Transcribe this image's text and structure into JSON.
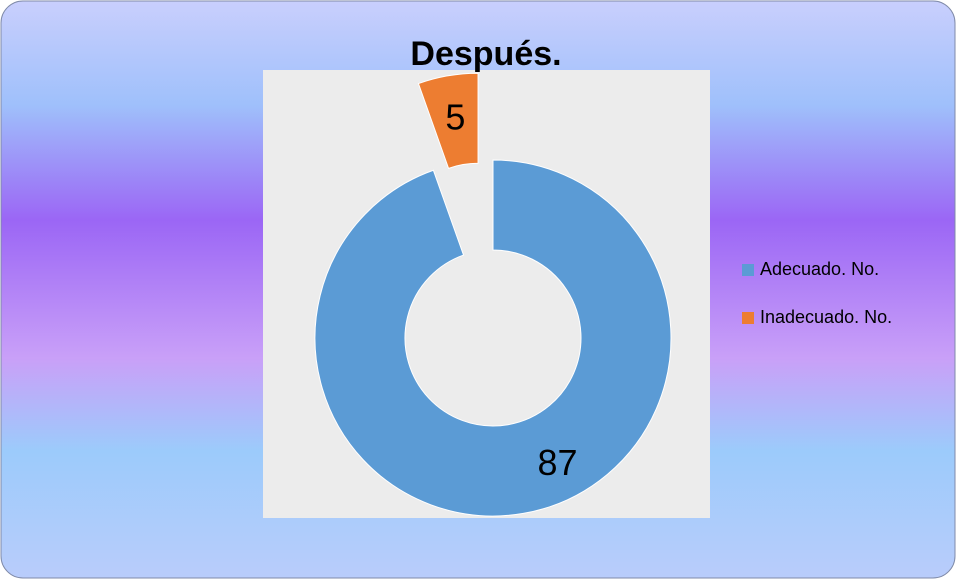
{
  "chart_data": {
    "type": "pie",
    "title": "Después.",
    "categories": [
      "Adecuado. No.",
      "Inadecuado. No."
    ],
    "values": [
      87,
      5
    ],
    "colors": [
      "#5b9bd5",
      "#ed7d31"
    ],
    "donut": true,
    "legend": "right"
  }
}
